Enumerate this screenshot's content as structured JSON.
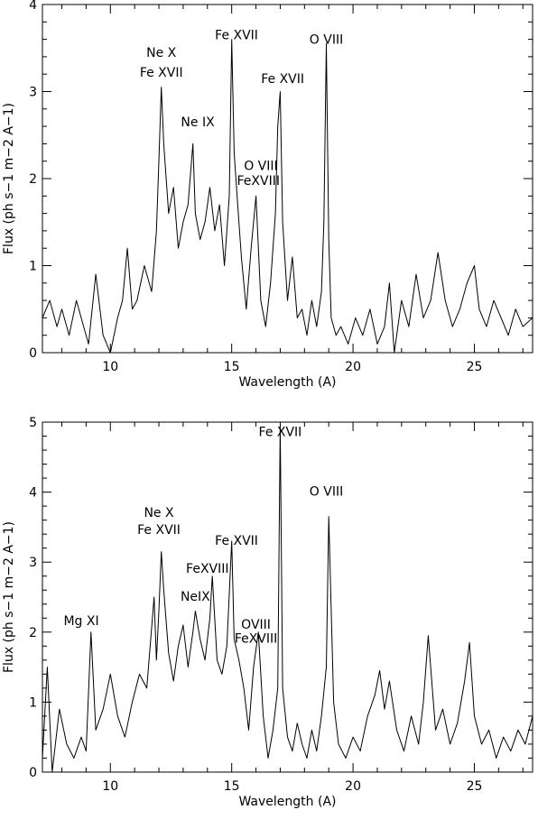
{
  "chart_data": [
    {
      "type": "line",
      "xlabel": "Wavelength (A)",
      "ylabel": "Flux (ph s−1 m−2 A−1)",
      "xlim": [
        7.2,
        27.4
      ],
      "ylim": [
        0,
        4
      ],
      "xticks": [
        10,
        15,
        20,
        25
      ],
      "yticks": [
        0,
        1,
        2,
        3,
        4
      ],
      "series": [
        {
          "x": [
            7.2,
            7.5,
            7.8,
            8.0,
            8.3,
            8.6,
            8.9,
            9.1,
            9.4,
            9.7,
            10.0,
            10.3,
            10.5,
            10.7,
            10.9,
            11.1,
            11.4,
            11.7,
            11.9,
            12.0,
            12.1,
            12.2,
            12.4,
            12.6,
            12.8,
            13.0,
            13.2,
            13.4,
            13.5,
            13.7,
            13.9,
            14.1,
            14.3,
            14.5,
            14.7,
            14.9,
            15.0,
            15.1,
            15.2,
            15.4,
            15.6,
            15.8,
            16.0,
            16.2,
            16.4,
            16.6,
            16.8,
            16.9,
            17.0,
            17.1,
            17.3,
            17.5,
            17.7,
            17.9,
            18.1,
            18.3,
            18.5,
            18.7,
            18.8,
            18.9,
            19.0,
            19.1,
            19.3,
            19.5,
            19.8,
            20.1,
            20.4,
            20.7,
            21.0,
            21.3,
            21.5,
            21.7,
            22.0,
            22.3,
            22.6,
            22.9,
            23.2,
            23.5,
            23.8,
            24.1,
            24.4,
            24.7,
            25.0,
            25.2,
            25.5,
            25.8,
            26.1,
            26.4,
            26.7,
            27.0,
            27.4
          ],
          "y": [
            0.4,
            0.6,
            0.3,
            0.5,
            0.2,
            0.6,
            0.3,
            0.1,
            0.9,
            0.2,
            0.0,
            0.4,
            0.6,
            1.2,
            0.5,
            0.6,
            1.0,
            0.7,
            1.4,
            2.2,
            3.05,
            2.4,
            1.6,
            1.9,
            1.2,
            1.5,
            1.7,
            2.4,
            1.6,
            1.3,
            1.5,
            1.9,
            1.4,
            1.7,
            1.0,
            1.8,
            3.6,
            2.3,
            1.9,
            1.1,
            0.5,
            1.2,
            1.8,
            0.6,
            0.3,
            0.8,
            1.6,
            2.6,
            3.0,
            1.5,
            0.6,
            1.1,
            0.4,
            0.5,
            0.2,
            0.6,
            0.3,
            0.7,
            1.5,
            3.55,
            1.3,
            0.4,
            0.2,
            0.3,
            0.1,
            0.4,
            0.2,
            0.5,
            0.1,
            0.3,
            0.8,
            0.0,
            0.6,
            0.3,
            0.9,
            0.4,
            0.6,
            1.15,
            0.6,
            0.3,
            0.5,
            0.8,
            1.0,
            0.5,
            0.3,
            0.6,
            0.4,
            0.2,
            0.5,
            0.3,
            0.4
          ]
        }
      ],
      "annotations": [
        {
          "text": "Ne X",
          "x": 12.1,
          "y": 3.4
        },
        {
          "text": "Fe XVII",
          "x": 12.1,
          "y": 3.17
        },
        {
          "text": "Ne IX",
          "x": 13.6,
          "y": 2.6
        },
        {
          "text": "Fe XVII",
          "x": 15.2,
          "y": 3.6
        },
        {
          "text": "O VIII",
          "x": 16.2,
          "y": 2.1
        },
        {
          "text": "FeXVIII",
          "x": 16.1,
          "y": 1.93
        },
        {
          "text": "Fe XVII",
          "x": 17.1,
          "y": 3.1
        },
        {
          "text": "O VIII",
          "x": 18.9,
          "y": 3.55
        }
      ]
    },
    {
      "type": "line",
      "xlabel": "Wavelength (A)",
      "ylabel": "Flux (ph s−1 m−2 A−1)",
      "xlim": [
        7.2,
        27.4
      ],
      "ylim": [
        0,
        5
      ],
      "xticks": [
        10,
        15,
        20,
        25
      ],
      "yticks": [
        0,
        1,
        2,
        3,
        4,
        5
      ],
      "series": [
        {
          "x": [
            7.2,
            7.4,
            7.6,
            7.9,
            8.2,
            8.5,
            8.8,
            9.0,
            9.2,
            9.4,
            9.7,
            10.0,
            10.3,
            10.6,
            10.9,
            11.2,
            11.5,
            11.8,
            11.9,
            12.0,
            12.1,
            12.2,
            12.4,
            12.6,
            12.8,
            13.0,
            13.2,
            13.4,
            13.5,
            13.7,
            13.9,
            14.1,
            14.2,
            14.4,
            14.6,
            14.8,
            15.0,
            15.1,
            15.3,
            15.5,
            15.7,
            15.9,
            16.1,
            16.3,
            16.5,
            16.7,
            16.9,
            17.0,
            17.1,
            17.3,
            17.5,
            17.7,
            17.9,
            18.1,
            18.3,
            18.5,
            18.7,
            18.9,
            19.0,
            19.2,
            19.4,
            19.7,
            20.0,
            20.3,
            20.6,
            20.9,
            21.1,
            21.3,
            21.5,
            21.8,
            22.1,
            22.4,
            22.7,
            22.9,
            23.1,
            23.4,
            23.7,
            24.0,
            24.3,
            24.6,
            24.8,
            25.0,
            25.3,
            25.6,
            25.9,
            26.2,
            26.5,
            26.8,
            27.1,
            27.4
          ],
          "y": [
            0.2,
            1.5,
            0.0,
            0.9,
            0.4,
            0.2,
            0.5,
            0.3,
            2.0,
            0.6,
            0.9,
            1.4,
            0.8,
            0.5,
            1.0,
            1.4,
            1.2,
            2.5,
            1.6,
            2.3,
            3.15,
            2.6,
            1.7,
            1.3,
            1.8,
            2.1,
            1.5,
            2.0,
            2.3,
            1.9,
            1.6,
            2.2,
            2.8,
            1.6,
            1.4,
            1.8,
            3.3,
            1.9,
            1.6,
            1.2,
            0.6,
            1.5,
            2.0,
            0.8,
            0.2,
            0.6,
            1.2,
            4.95,
            1.2,
            0.5,
            0.3,
            0.7,
            0.4,
            0.2,
            0.6,
            0.3,
            0.8,
            1.5,
            3.65,
            1.0,
            0.4,
            0.2,
            0.5,
            0.3,
            0.8,
            1.1,
            1.45,
            0.9,
            1.3,
            0.6,
            0.3,
            0.8,
            0.4,
            1.0,
            1.95,
            0.6,
            0.9,
            0.4,
            0.7,
            1.3,
            1.85,
            0.8,
            0.4,
            0.6,
            0.2,
            0.5,
            0.3,
            0.6,
            0.4,
            0.8
          ]
        }
      ],
      "annotations": [
        {
          "text": "Mg XI",
          "x": 8.8,
          "y": 2.1
        },
        {
          "text": "Ne X",
          "x": 12.0,
          "y": 3.65
        },
        {
          "text": "Fe XVII",
          "x": 12.0,
          "y": 3.4
        },
        {
          "text": "NeIX",
          "x": 13.5,
          "y": 2.45
        },
        {
          "text": "FeXVIII",
          "x": 14.0,
          "y": 2.85
        },
        {
          "text": "Fe XVII",
          "x": 15.2,
          "y": 3.25
        },
        {
          "text": "OVIII",
          "x": 16.0,
          "y": 2.05
        },
        {
          "text": "FeXVIII",
          "x": 16.0,
          "y": 1.85
        },
        {
          "text": "Fe XVII",
          "x": 17.0,
          "y": 4.8
        },
        {
          "text": "O VIII",
          "x": 18.9,
          "y": 3.95
        }
      ]
    }
  ]
}
